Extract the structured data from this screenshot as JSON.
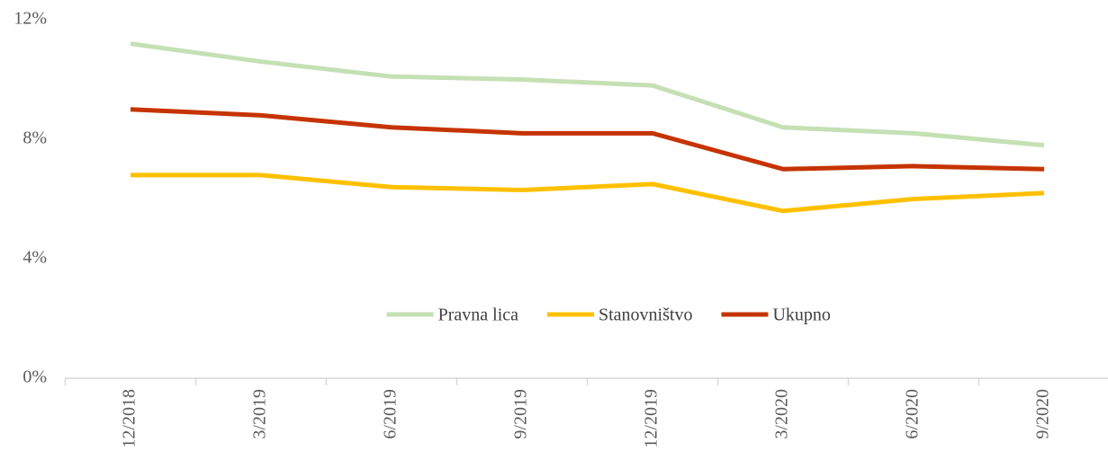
{
  "chart_data": {
    "type": "line",
    "categories": [
      "12/2018",
      "3/2019",
      "6/2019",
      "9/2019",
      "12/2019",
      "3/2020",
      "6/2020",
      "9/2020"
    ],
    "series": [
      {
        "name": "Pravna lica",
        "color": "#c5e0b4",
        "values": [
          11.2,
          10.6,
          10.1,
          10.0,
          9.8,
          8.4,
          8.2,
          7.8
        ]
      },
      {
        "name": "Stanovništvo",
        "color": "#ffc000",
        "values": [
          6.8,
          6.8,
          6.4,
          6.3,
          6.5,
          5.6,
          6.0,
          6.2
        ]
      },
      {
        "name": "Ukupno",
        "color": "#c63300",
        "values": [
          9.0,
          8.8,
          8.4,
          8.2,
          8.2,
          7.0,
          7.1,
          7.0
        ]
      }
    ],
    "ylim": [
      0,
      12
    ],
    "yticks": [
      {
        "value": 0,
        "label": "0%"
      },
      {
        "value": 4,
        "label": "4%"
      },
      {
        "value": 8,
        "label": "8%"
      },
      {
        "value": 12,
        "label": "12%"
      }
    ],
    "grid": false,
    "legend": "center"
  }
}
